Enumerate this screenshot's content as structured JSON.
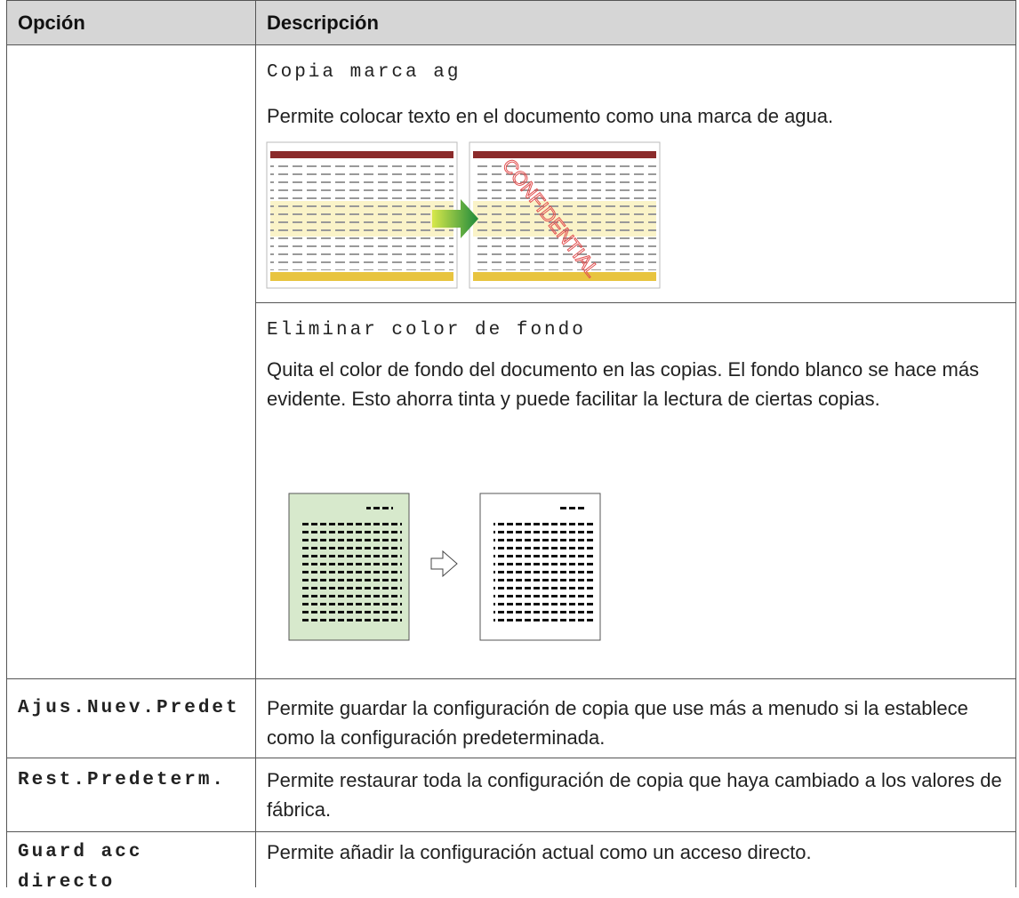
{
  "table": {
    "header": [
      "Opción",
      "Descripción"
    ],
    "first_row": {
      "entries": [
        {
          "name": "Copia marca ag",
          "description": "Permite colocar texto en el documento como una marca de agua.",
          "illustration_text": "CONFIDENTIAL"
        },
        {
          "name": "Eliminar color de fondo",
          "description": "Quita el color de fondo del documento en las copias. El fondo blanco se hace más evidente. Esto ahorra tinta y puede facilitar la lectura de ciertas copias."
        }
      ]
    },
    "rows": [
      [
        "Ajus.Nuev.Predet",
        "Permite guardar la configuración de copia que use más a menudo si la establece como la configuración predeterminada."
      ],
      [
        "Rest.Predeterm.",
        "Permite restaurar toda la configuración de copia que haya cambiado a los valores de fábrica."
      ],
      [
        "Guard acc directo",
        "Permite añadir la configuración actual como un acceso directo."
      ]
    ]
  }
}
